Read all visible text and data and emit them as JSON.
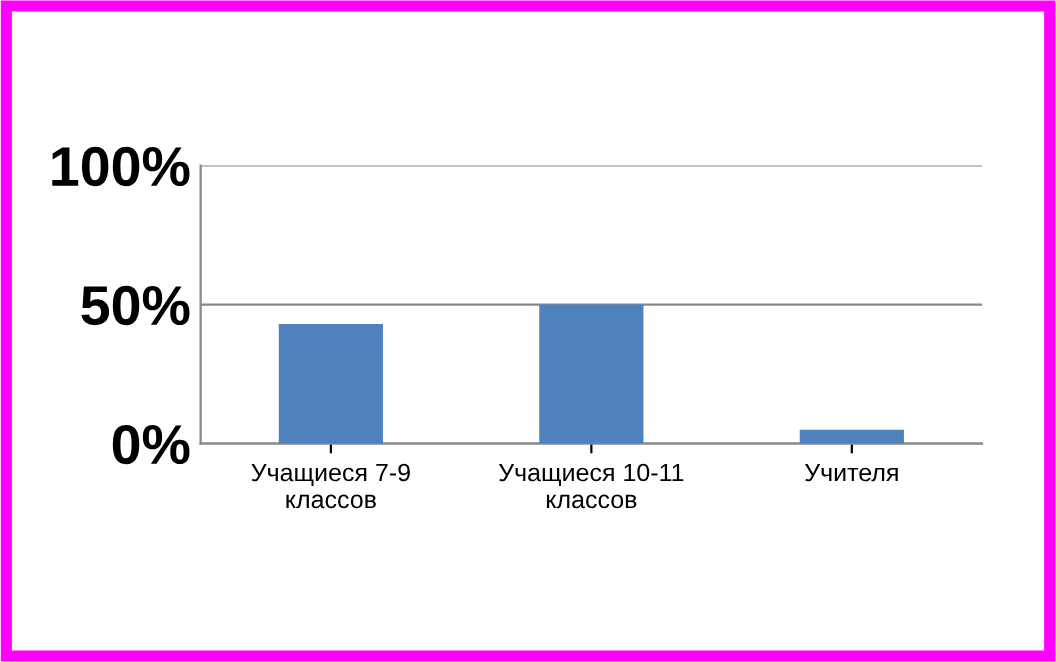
{
  "chart_data": {
    "type": "bar",
    "categories": [
      "Учащиеся 7-9\nклассов",
      "Учащиеся 10-11\nклассов",
      "Учителя"
    ],
    "values": [
      43,
      50,
      5
    ],
    "color": "#4f81bd",
    "ylim": [
      0,
      100
    ],
    "yticks": [
      {
        "value": 0,
        "label": "0%"
      },
      {
        "value": 50,
        "label": "50%"
      },
      {
        "value": 100,
        "label": "100%"
      }
    ],
    "grid": "y",
    "legend": false
  }
}
